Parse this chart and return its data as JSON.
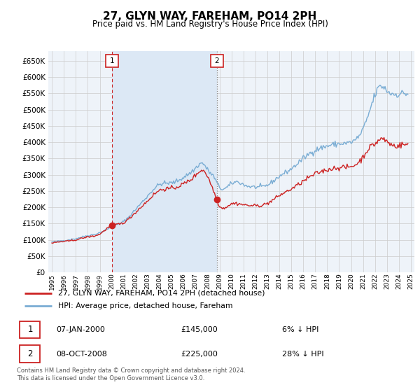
{
  "title": "27, GLYN WAY, FAREHAM, PO14 2PH",
  "subtitle": "Price paid vs. HM Land Registry's House Price Index (HPI)",
  "ytick_values": [
    0,
    50000,
    100000,
    150000,
    200000,
    250000,
    300000,
    350000,
    400000,
    450000,
    500000,
    550000,
    600000,
    650000
  ],
  "ylim": [
    0,
    680000
  ],
  "xlim_start": 1994.7,
  "xlim_end": 2025.3,
  "grid_color": "#cccccc",
  "hpi_color": "#7aadd4",
  "price_color": "#cc2222",
  "sale1_date": 2000.03,
  "sale1_price": 145000,
  "sale1_label": "1",
  "sale2_date": 2008.77,
  "sale2_price": 225000,
  "sale2_label": "2",
  "legend_line1": "27, GLYN WAY, FAREHAM, PO14 2PH (detached house)",
  "legend_line2": "HPI: Average price, detached house, Fareham",
  "footer": "Contains HM Land Registry data © Crown copyright and database right 2024.\nThis data is licensed under the Open Government Licence v3.0.",
  "background_color": "#ffffff",
  "plot_bg_color": "#eef3f9",
  "shade_color": "#dce8f5"
}
